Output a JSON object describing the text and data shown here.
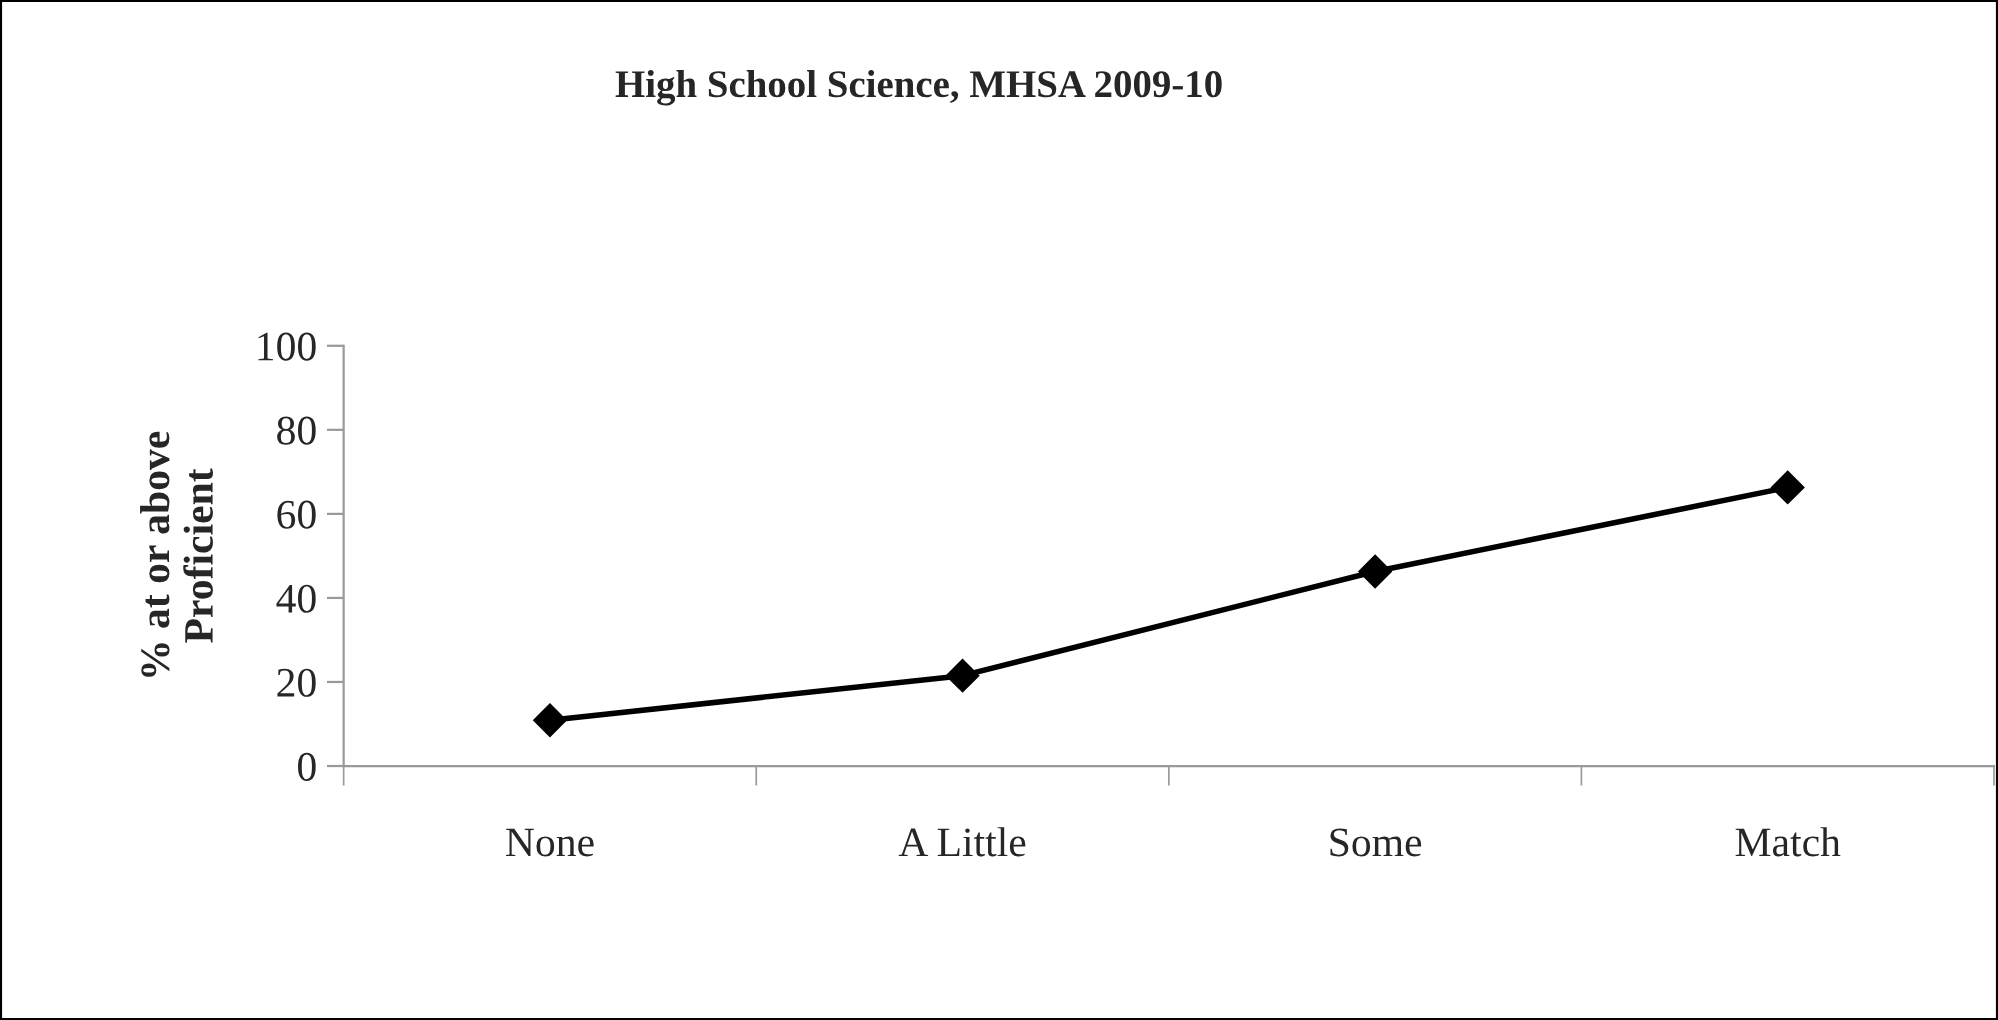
{
  "chart_data": {
    "type": "line",
    "title": "High School Science, MHSA 2009-10",
    "ylabel": "% at or above\nProficient",
    "categories": [
      "None",
      "A Little",
      "Some",
      "Match"
    ],
    "series": [
      {
        "color": "#000000",
        "values": [
          10.9,
          21.5,
          46.3,
          66.3
        ]
      }
    ],
    "ylim": [
      0,
      100
    ],
    "yticks": [
      0,
      20,
      40,
      60,
      80,
      100
    ],
    "grid": false,
    "legend": false,
    "marker": "diamond",
    "line_style": "solid"
  }
}
